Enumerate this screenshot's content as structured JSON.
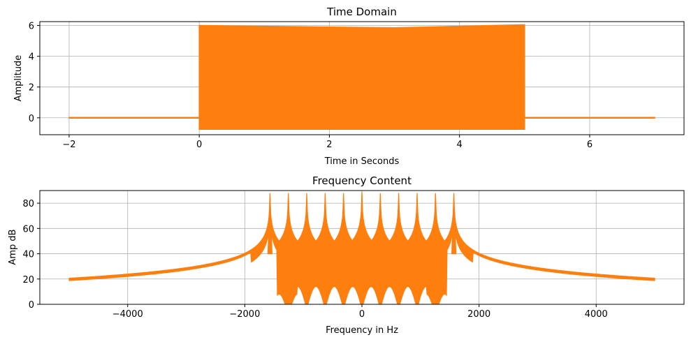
{
  "colors": {
    "signal": "#ff7f0e",
    "grid": "#b0b0b0",
    "axis": "#000000",
    "background": "#ffffff"
  },
  "chart_data": [
    {
      "type": "line",
      "title": "Time Domain",
      "xlabel": "Time in Seconds",
      "ylabel": "Amplitude",
      "xlim": [
        -2.45,
        7.45
      ],
      "ylim": [
        -1.1,
        6.25
      ],
      "xticks": [
        -2,
        0,
        2,
        4,
        6
      ],
      "yticks": [
        0,
        2,
        4,
        6
      ],
      "xtick_labels": [
        "−2",
        "0",
        "2",
        "4",
        "6"
      ],
      "ytick_labels": [
        "0",
        "2",
        "4",
        "6"
      ],
      "grid": true,
      "series": [
        {
          "description": "dense oscillating envelope, zero outside 0–5 s",
          "x": [
            -2,
            0,
            0,
            1,
            2,
            3,
            4,
            5,
            5,
            7
          ],
          "y_upper": [
            0.02,
            0.02,
            6.0,
            5.95,
            5.9,
            5.85,
            5.95,
            6.05,
            0.02,
            0.02
          ],
          "y_lower": [
            -0.02,
            -0.02,
            -0.75,
            -0.75,
            -0.75,
            -0.75,
            -0.75,
            -0.75,
            -0.02,
            -0.02
          ]
        }
      ]
    },
    {
      "type": "line",
      "title": "Frequency Content",
      "xlabel": "Frequency in Hz",
      "ylabel": "Amp dB",
      "xlim": [
        -5500,
        5500
      ],
      "ylim": [
        0,
        90
      ],
      "xticks": [
        -4000,
        -2000,
        0,
        2000,
        4000
      ],
      "yticks": [
        0,
        20,
        40,
        60,
        80
      ],
      "xtick_labels": [
        "−4000",
        "−2000",
        "0",
        "2000",
        "4000"
      ],
      "ytick_labels": [
        "0",
        "20",
        "40",
        "60",
        "80"
      ],
      "grid": true,
      "series": [
        {
          "description": "spectrum with 11 harmonic peaks",
          "x_range": [
            -5000,
            5000
          ],
          "floor_db": 9.5,
          "peaks": [
            {
              "freq": -1570,
              "db": 88
            },
            {
              "freq": -1256,
              "db": 88
            },
            {
              "freq": -942,
              "db": 88
            },
            {
              "freq": -628,
              "db": 88
            },
            {
              "freq": -314,
              "db": 88
            },
            {
              "freq": 0,
              "db": 89
            },
            {
              "freq": 314,
              "db": 88
            },
            {
              "freq": 628,
              "db": 88
            },
            {
              "freq": 942,
              "db": 88
            },
            {
              "freq": 1256,
              "db": 88
            },
            {
              "freq": 1570,
              "db": 88
            }
          ]
        }
      ]
    }
  ]
}
